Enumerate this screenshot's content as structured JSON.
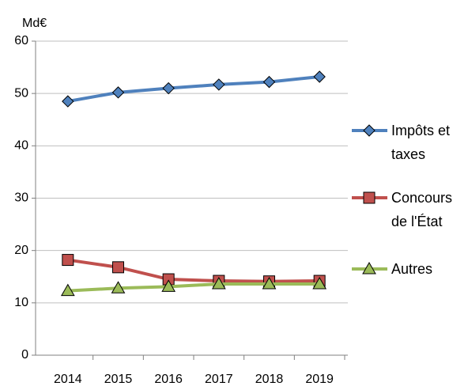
{
  "chart_data": {
    "type": "line",
    "unit_label": "Md€",
    "categories": [
      "2014",
      "2015",
      "2016",
      "2017",
      "2018",
      "2019"
    ],
    "series": [
      {
        "name": "Impôts et taxes",
        "color": "#4f81bd",
        "marker": "diamond",
        "values": [
          48.5,
          50.2,
          51.0,
          51.7,
          52.2,
          53.2
        ]
      },
      {
        "name": "Concours de l'État",
        "color": "#c0504d",
        "marker": "square",
        "values": [
          18.2,
          16.8,
          14.5,
          14.2,
          14.1,
          14.2
        ]
      },
      {
        "name": "Autres",
        "color": "#9bbb59",
        "marker": "triangle",
        "values": [
          12.3,
          12.8,
          13.1,
          13.6,
          13.6,
          13.6
        ]
      }
    ],
    "ylim": [
      0,
      60
    ],
    "yticks": [
      0,
      10,
      20,
      30,
      40,
      50,
      60
    ],
    "grid": true,
    "legend": "right"
  }
}
